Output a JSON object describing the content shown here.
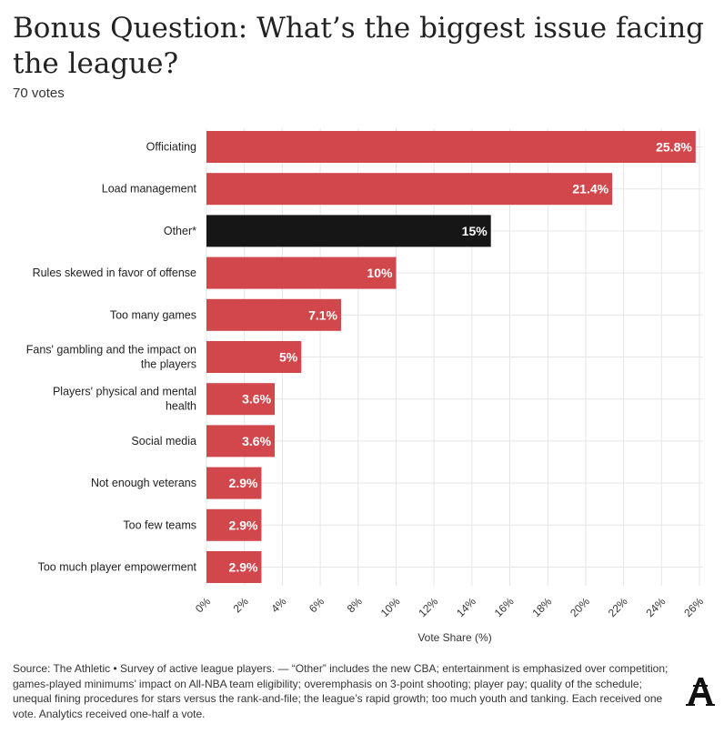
{
  "chart_data": {
    "type": "bar",
    "orientation": "horizontal",
    "title": "Bonus Question: What’s the biggest issue facing the league?",
    "subtitle": "70 votes",
    "xlabel": "Vote Share (%)",
    "ylabel": "",
    "xlim": [
      0,
      26
    ],
    "x_ticks": [
      "0%",
      "2%",
      "4%",
      "6%",
      "8%",
      "10%",
      "12%",
      "14%",
      "16%",
      "18%",
      "20%",
      "22%",
      "24%",
      "26%"
    ],
    "grid": true,
    "categories": [
      "Officiating",
      "Load management",
      "Other*",
      "Rules skewed in favor of offense",
      "Too many games",
      "Fans' gambling and the impact on the players",
      "Players' physical and mental health",
      "Social media",
      "Not enough veterans",
      "Too few teams",
      "Too much player empowerment"
    ],
    "values": [
      25.8,
      21.4,
      15,
      10,
      7.1,
      5,
      3.6,
      3.6,
      2.9,
      2.9,
      2.9
    ],
    "value_labels": [
      "25.8%",
      "21.4%",
      "15%",
      "10%",
      "7.1%",
      "5%",
      "3.6%",
      "3.6%",
      "2.9%",
      "2.9%",
      "2.9%"
    ],
    "colors": {
      "default": "#d1474b",
      "highlight": "#161616",
      "highlight_category": "Other*",
      "grid": "#e6e6e6"
    }
  },
  "footnote": "Source: The Athletic • Survey of active league players. — “Other” includes the new CBA; entertainment is emphasized over competition; games-played minimums’ impact on All-NBA team eligibility; overemphasis on 3-point shooting; player pay; quality of the schedule; unequal fining procedures for stars versus the rank-and-file; the league’s rapid growth; too much youth and tanking. Each received one vote. Analytics received one-half a vote.",
  "logo": {
    "icon": "the-athletic-logo-icon"
  }
}
